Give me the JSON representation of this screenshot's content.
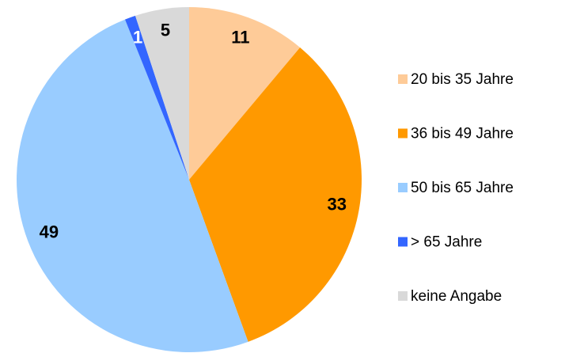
{
  "chart_data": {
    "type": "pie",
    "categories": [
      "20 bis 35 Jahre",
      "36 bis 49 Jahre",
      "50 bis 65 Jahre",
      "> 65 Jahre",
      "keine Angabe"
    ],
    "values": [
      11,
      33,
      49,
      1,
      5
    ],
    "colors": [
      "#fecb98",
      "#ff9900",
      "#99ccff",
      "#3366ff",
      "#d9d9d9"
    ],
    "label_colors": [
      "#000000",
      "#000000",
      "#000000",
      "#ffffff",
      "#000000"
    ],
    "legend": "right"
  }
}
